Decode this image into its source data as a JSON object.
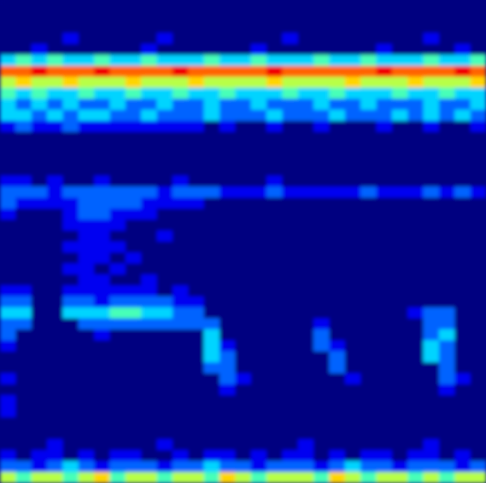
{
  "chart_data": {
    "type": "heatmap",
    "tick_labels": false,
    "zlim": [
      0,
      9
    ],
    "cells": [
      [
        0,
        0,
        0,
        0,
        0,
        0,
        0,
        0,
        0,
        0,
        0,
        0,
        0,
        0,
        0,
        0,
        0,
        0,
        0,
        0,
        0,
        0,
        0,
        0,
        0,
        0,
        0,
        0,
        0,
        0,
        0
      ],
      [
        0,
        0,
        0,
        0,
        0,
        0,
        0,
        0,
        0,
        0,
        0,
        0,
        0,
        0,
        0,
        0,
        0,
        0,
        0,
        0,
        0,
        0,
        0,
        0,
        0,
        0,
        0,
        0,
        0,
        0,
        0
      ],
      [
        0,
        0,
        0,
        0,
        0,
        0,
        0,
        0,
        0,
        0,
        0,
        0,
        0,
        0,
        0,
        0,
        0,
        0,
        0,
        0,
        0,
        0,
        0,
        0,
        0,
        0,
        0,
        0,
        0,
        0,
        0
      ],
      [
        0,
        0,
        0,
        0,
        1,
        0,
        0,
        0,
        0,
        0,
        1,
        0,
        0,
        0,
        0,
        0,
        0,
        0,
        1,
        0,
        0,
        0,
        0,
        0,
        0,
        0,
        0,
        1,
        0,
        0,
        0
      ],
      [
        0,
        0,
        1,
        0,
        0,
        0,
        0,
        0,
        0,
        1,
        0,
        0,
        0,
        0,
        0,
        0,
        1,
        0,
        0,
        0,
        0,
        0,
        0,
        0,
        1,
        0,
        0,
        0,
        0,
        1,
        0
      ],
      [
        3,
        4,
        3,
        4,
        3,
        3,
        4,
        3,
        3,
        4,
        3,
        3,
        3,
        4,
        3,
        3,
        4,
        3,
        3,
        3,
        4,
        3,
        3,
        4,
        3,
        3,
        3,
        4,
        3,
        3,
        4
      ],
      [
        7,
        7,
        8,
        7,
        7,
        7,
        8,
        7,
        7,
        7,
        7,
        8,
        7,
        7,
        7,
        7,
        7,
        8,
        7,
        7,
        7,
        7,
        7,
        7,
        8,
        7,
        7,
        7,
        7,
        8,
        7
      ],
      [
        5,
        6,
        5,
        5,
        6,
        5,
        5,
        5,
        6,
        5,
        5,
        5,
        6,
        5,
        5,
        5,
        5,
        6,
        5,
        5,
        5,
        5,
        6,
        5,
        5,
        5,
        6,
        5,
        5,
        5,
        6
      ],
      [
        4,
        3,
        4,
        3,
        3,
        4,
        3,
        3,
        4,
        3,
        3,
        4,
        3,
        3,
        4,
        3,
        3,
        3,
        4,
        3,
        3,
        4,
        3,
        3,
        3,
        4,
        3,
        3,
        4,
        3,
        3
      ],
      [
        3,
        2,
        3,
        2,
        3,
        2,
        2,
        3,
        2,
        2,
        3,
        2,
        2,
        3,
        2,
        2,
        3,
        2,
        2,
        2,
        3,
        2,
        2,
        3,
        2,
        2,
        2,
        3,
        2,
        2,
        3
      ],
      [
        3,
        3,
        2,
        3,
        2,
        3,
        3,
        2,
        2,
        3,
        2,
        2,
        2,
        3,
        2,
        2,
        2,
        3,
        2,
        2,
        2,
        3,
        2,
        2,
        2,
        3,
        2,
        3,
        2,
        3,
        2
      ],
      [
        1,
        2,
        1,
        1,
        2,
        1,
        1,
        1,
        1,
        1,
        1,
        1,
        1,
        0,
        1,
        0,
        0,
        1,
        0,
        0,
        1,
        0,
        0,
        0,
        1,
        0,
        0,
        1,
        0,
        0,
        1
      ],
      [
        0,
        0,
        0,
        0,
        0,
        0,
        0,
        0,
        0,
        0,
        0,
        0,
        0,
        0,
        0,
        0,
        0,
        0,
        0,
        0,
        0,
        0,
        0,
        0,
        0,
        0,
        0,
        0,
        0,
        0,
        0
      ],
      [
        0,
        0,
        0,
        0,
        0,
        0,
        0,
        0,
        0,
        0,
        0,
        0,
        0,
        0,
        0,
        0,
        0,
        0,
        0,
        0,
        0,
        0,
        0,
        0,
        0,
        0,
        0,
        0,
        0,
        0,
        0
      ],
      [
        0,
        0,
        0,
        0,
        0,
        0,
        0,
        0,
        0,
        0,
        0,
        0,
        0,
        0,
        0,
        0,
        0,
        0,
        0,
        0,
        0,
        0,
        0,
        0,
        0,
        0,
        0,
        0,
        0,
        0,
        0
      ],
      [
        0,
        0,
        0,
        0,
        0,
        0,
        0,
        0,
        0,
        0,
        0,
        0,
        0,
        0,
        0,
        0,
        0,
        0,
        0,
        0,
        0,
        0,
        0,
        0,
        0,
        0,
        0,
        0,
        0,
        0,
        0
      ],
      [
        1,
        1,
        0,
        1,
        0,
        0,
        1,
        0,
        0,
        0,
        0,
        1,
        0,
        0,
        0,
        0,
        0,
        1,
        0,
        0,
        0,
        0,
        0,
        0,
        0,
        0,
        0,
        0,
        0,
        0,
        0
      ],
      [
        2,
        2,
        2,
        1,
        2,
        2,
        2,
        2,
        2,
        2,
        1,
        2,
        2,
        2,
        1,
        1,
        1,
        2,
        1,
        1,
        1,
        1,
        1,
        2,
        1,
        1,
        1,
        2,
        1,
        2,
        1
      ],
      [
        2,
        1,
        1,
        1,
        1,
        2,
        2,
        2,
        2,
        1,
        1,
        1,
        1,
        0,
        0,
        0,
        0,
        0,
        0,
        0,
        0,
        0,
        0,
        0,
        0,
        0,
        0,
        0,
        0,
        0,
        0
      ],
      [
        1,
        0,
        0,
        0,
        1,
        2,
        2,
        1,
        1,
        1,
        0,
        0,
        0,
        0,
        0,
        0,
        0,
        0,
        0,
        0,
        0,
        0,
        0,
        0,
        0,
        0,
        0,
        0,
        0,
        0,
        0
      ],
      [
        0,
        0,
        0,
        0,
        1,
        1,
        1,
        1,
        0,
        0,
        0,
        0,
        0,
        0,
        0,
        0,
        0,
        0,
        0,
        0,
        0,
        0,
        0,
        0,
        0,
        0,
        0,
        0,
        0,
        0,
        0
      ],
      [
        0,
        0,
        0,
        0,
        0,
        1,
        1,
        0,
        0,
        0,
        1,
        0,
        0,
        0,
        0,
        0,
        0,
        0,
        0,
        0,
        0,
        0,
        0,
        0,
        0,
        0,
        0,
        0,
        0,
        0,
        0
      ],
      [
        0,
        0,
        0,
        0,
        1,
        1,
        1,
        1,
        0,
        0,
        0,
        0,
        0,
        0,
        0,
        0,
        0,
        0,
        0,
        0,
        0,
        0,
        0,
        0,
        0,
        0,
        0,
        0,
        0,
        0,
        0
      ],
      [
        0,
        0,
        0,
        0,
        0,
        1,
        1,
        0,
        1,
        0,
        0,
        0,
        0,
        0,
        0,
        0,
        0,
        0,
        0,
        0,
        0,
        0,
        0,
        0,
        0,
        0,
        0,
        0,
        0,
        0,
        0
      ],
      [
        0,
        0,
        0,
        0,
        1,
        1,
        0,
        1,
        0,
        0,
        0,
        0,
        0,
        0,
        0,
        0,
        0,
        0,
        0,
        0,
        0,
        0,
        0,
        0,
        0,
        0,
        0,
        0,
        0,
        0,
        0
      ],
      [
        0,
        0,
        0,
        0,
        0,
        1,
        1,
        0,
        0,
        1,
        0,
        0,
        0,
        0,
        0,
        0,
        0,
        0,
        0,
        0,
        0,
        0,
        0,
        0,
        0,
        0,
        0,
        0,
        0,
        0,
        0
      ],
      [
        1,
        1,
        0,
        0,
        1,
        1,
        1,
        1,
        1,
        1,
        0,
        1,
        0,
        0,
        0,
        0,
        0,
        0,
        0,
        0,
        0,
        0,
        0,
        0,
        0,
        0,
        0,
        0,
        0,
        0,
        0
      ],
      [
        2,
        2,
        0,
        0,
        2,
        2,
        1,
        2,
        2,
        2,
        2,
        1,
        1,
        0,
        0,
        0,
        0,
        0,
        0,
        0,
        0,
        0,
        0,
        0,
        0,
        0,
        0,
        0,
        0,
        0,
        0
      ],
      [
        3,
        3,
        0,
        0,
        3,
        3,
        3,
        4,
        4,
        3,
        3,
        2,
        2,
        0,
        0,
        0,
        0,
        0,
        0,
        0,
        0,
        0,
        0,
        0,
        0,
        0,
        1,
        2,
        2,
        0,
        0
      ],
      [
        2,
        2,
        0,
        0,
        0,
        2,
        2,
        2,
        2,
        2,
        2,
        2,
        2,
        2,
        0,
        0,
        0,
        0,
        0,
        0,
        1,
        0,
        0,
        0,
        0,
        0,
        0,
        2,
        2,
        0,
        0
      ],
      [
        2,
        0,
        0,
        0,
        0,
        0,
        1,
        0,
        0,
        0,
        0,
        0,
        0,
        3,
        0,
        0,
        0,
        0,
        0,
        0,
        2,
        0,
        0,
        0,
        0,
        0,
        0,
        2,
        3,
        0,
        0
      ],
      [
        1,
        0,
        0,
        0,
        0,
        0,
        0,
        0,
        0,
        0,
        0,
        0,
        0,
        3,
        1,
        0,
        0,
        0,
        0,
        0,
        2,
        1,
        0,
        0,
        0,
        0,
        0,
        3,
        2,
        0,
        0
      ],
      [
        0,
        0,
        0,
        0,
        0,
        0,
        0,
        0,
        0,
        0,
        0,
        0,
        0,
        3,
        2,
        0,
        0,
        0,
        0,
        0,
        0,
        2,
        0,
        0,
        0,
        0,
        0,
        3,
        2,
        0,
        0
      ],
      [
        0,
        0,
        0,
        0,
        0,
        0,
        0,
        0,
        0,
        0,
        0,
        0,
        0,
        2,
        2,
        0,
        0,
        0,
        0,
        0,
        0,
        2,
        0,
        0,
        0,
        0,
        0,
        0,
        2,
        0,
        0
      ],
      [
        1,
        0,
        0,
        0,
        0,
        0,
        0,
        0,
        0,
        0,
        0,
        0,
        0,
        0,
        2,
        1,
        0,
        0,
        0,
        0,
        0,
        0,
        1,
        0,
        0,
        0,
        0,
        0,
        2,
        1,
        0
      ],
      [
        0,
        0,
        0,
        0,
        0,
        0,
        0,
        0,
        0,
        0,
        0,
        0,
        0,
        0,
        1,
        0,
        0,
        0,
        0,
        0,
        0,
        0,
        0,
        0,
        0,
        0,
        0,
        0,
        1,
        0,
        0
      ],
      [
        1,
        0,
        0,
        0,
        0,
        0,
        0,
        0,
        0,
        0,
        0,
        0,
        0,
        0,
        0,
        0,
        0,
        0,
        0,
        0,
        0,
        0,
        0,
        0,
        0,
        0,
        0,
        0,
        0,
        0,
        0
      ],
      [
        1,
        0,
        0,
        0,
        0,
        0,
        0,
        0,
        0,
        0,
        0,
        0,
        0,
        0,
        0,
        0,
        0,
        0,
        0,
        0,
        0,
        0,
        0,
        0,
        0,
        0,
        0,
        0,
        0,
        0,
        0
      ],
      [
        0,
        0,
        0,
        0,
        0,
        0,
        0,
        0,
        0,
        0,
        0,
        0,
        0,
        0,
        0,
        0,
        0,
        0,
        0,
        0,
        0,
        0,
        0,
        0,
        0,
        0,
        0,
        0,
        0,
        0,
        0
      ],
      [
        0,
        0,
        0,
        0,
        0,
        0,
        0,
        0,
        0,
        0,
        0,
        0,
        0,
        0,
        0,
        0,
        0,
        0,
        0,
        0,
        0,
        0,
        0,
        0,
        0,
        0,
        0,
        0,
        0,
        0,
        0
      ],
      [
        0,
        0,
        0,
        1,
        0,
        0,
        0,
        0,
        0,
        0,
        1,
        0,
        0,
        0,
        0,
        0,
        0,
        0,
        0,
        1,
        0,
        0,
        0,
        0,
        0,
        0,
        0,
        1,
        0,
        0,
        0
      ],
      [
        1,
        0,
        1,
        1,
        0,
        1,
        0,
        1,
        1,
        0,
        0,
        1,
        0,
        1,
        1,
        0,
        1,
        0,
        1,
        1,
        0,
        1,
        0,
        1,
        1,
        0,
        1,
        1,
        0,
        1,
        0
      ],
      [
        2,
        2,
        1,
        2,
        3,
        2,
        1,
        2,
        2,
        2,
        1,
        2,
        2,
        3,
        2,
        2,
        1,
        2,
        2,
        2,
        1,
        2,
        3,
        2,
        2,
        1,
        2,
        2,
        2,
        1,
        2
      ],
      [
        5,
        4,
        5,
        5,
        4,
        5,
        6,
        4,
        5,
        5,
        4,
        5,
        5,
        4,
        6,
        5,
        4,
        5,
        5,
        5,
        4,
        6,
        5,
        4,
        5,
        5,
        4,
        5,
        4,
        5,
        5
      ]
    ]
  }
}
